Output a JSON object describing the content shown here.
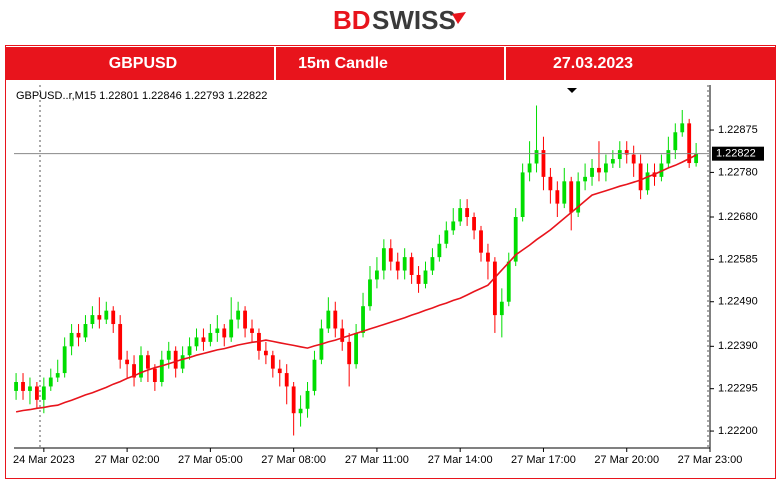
{
  "header": {
    "logo_bd": "BD",
    "logo_swiss": "SWISS",
    "symbol": "GBPUSD",
    "timeframe": "15m Candle",
    "date": "27.03.2023"
  },
  "chart_data": {
    "type": "candlestick",
    "symbol_info": "GBPUSD..r,M15  1.22801  1.22846  1.22793  1.22822",
    "last_price": 1.22822,
    "up_color": "#00dd00",
    "down_color": "#ff0000",
    "open": [
      1.2229,
      1.2231,
      1.2229,
      1.223,
      1.2227,
      1.223,
      1.2232,
      1.2233,
      1.2239,
      1.2242,
      1.2241,
      1.2244,
      1.2246,
      1.2245,
      1.2247,
      1.2244,
      1.2236,
      1.2235,
      1.2232,
      1.2237,
      1.2234,
      1.2231,
      1.2236,
      1.2238,
      1.2234,
      1.2237,
      1.2239,
      1.2241,
      1.224,
      1.2242,
      1.2243,
      1.2241,
      1.2245,
      1.2247,
      1.2243,
      1.2242,
      1.2238,
      1.2237,
      1.2234,
      1.2233,
      1.223,
      1.2224,
      1.2225,
      1.2229,
      1.2236,
      1.2243,
      1.2247,
      1.2243,
      1.224,
      1.2235,
      1.2242,
      1.2248,
      1.2254,
      1.2256,
      1.2261,
      1.2258,
      1.2256,
      1.2259,
      1.2255,
      1.2253,
      1.2256,
      1.2259,
      1.2262,
      1.2265,
      1.2267,
      1.227,
      1.2268,
      1.2265,
      1.226,
      1.2258,
      1.2246,
      1.2249,
      1.2258,
      1.2268,
      1.2278,
      1.228,
      1.2283,
      1.2277,
      1.2274,
      1.2271,
      1.2276,
      1.2269,
      1.2276,
      1.2277,
      1.2279,
      1.2278,
      1.228,
      1.2281,
      1.2283,
      1.2282,
      1.228,
      1.2274,
      1.2278,
      1.2277,
      1.228,
      1.2283,
      1.2287,
      1.2289,
      1.22801
    ],
    "high": [
      1.2233,
      1.2233,
      1.2232,
      1.2231,
      1.2232,
      1.2234,
      1.2236,
      1.2241,
      1.2244,
      1.2244,
      1.2246,
      1.2248,
      1.225,
      1.2249,
      1.2248,
      1.2246,
      1.2238,
      1.2237,
      1.2239,
      1.2238,
      1.2235,
      1.2238,
      1.224,
      1.2239,
      1.2239,
      1.2241,
      1.2243,
      1.2243,
      1.2244,
      1.2246,
      1.2244,
      1.225,
      1.2249,
      1.2248,
      1.2245,
      1.2243,
      1.224,
      1.2238,
      1.2236,
      1.2235,
      1.2231,
      1.2228,
      1.2231,
      1.2238,
      1.2245,
      1.225,
      1.2249,
      1.2245,
      1.2242,
      1.2244,
      1.2251,
      1.2257,
      1.2259,
      1.2263,
      1.2263,
      1.226,
      1.2261,
      1.226,
      1.2257,
      1.2258,
      1.2261,
      1.2264,
      1.2267,
      1.227,
      1.2272,
      1.2272,
      1.2269,
      1.2266,
      1.2262,
      1.2259,
      1.2252,
      1.226,
      1.227,
      1.228,
      1.2285,
      1.2293,
      1.2286,
      1.2279,
      1.2276,
      1.2279,
      1.2277,
      1.2278,
      1.228,
      1.2281,
      1.2285,
      1.2282,
      1.2283,
      1.2285,
      1.2285,
      1.2284,
      1.2282,
      1.228,
      1.228,
      1.2282,
      1.2286,
      1.2289,
      1.2292,
      1.229,
      1.22846
    ],
    "low": [
      1.2227,
      1.2227,
      1.2226,
      1.2225,
      1.2224,
      1.2229,
      1.2231,
      1.2232,
      1.2237,
      1.2239,
      1.224,
      1.2243,
      1.2243,
      1.2244,
      1.2242,
      1.2234,
      1.2232,
      1.223,
      1.2231,
      1.2231,
      1.2229,
      1.223,
      1.2234,
      1.2232,
      1.2233,
      1.2236,
      1.2238,
      1.2238,
      1.2239,
      1.224,
      1.2239,
      1.224,
      1.2243,
      1.2241,
      1.224,
      1.2236,
      1.2235,
      1.2232,
      1.223,
      1.2226,
      1.2219,
      1.2221,
      1.2223,
      1.2228,
      1.2235,
      1.2242,
      1.2241,
      1.2238,
      1.223,
      1.2234,
      1.2241,
      1.2247,
      1.2252,
      1.2254,
      1.2256,
      1.2254,
      1.2254,
      1.2253,
      1.2251,
      1.2252,
      1.2255,
      1.2258,
      1.2261,
      1.2264,
      1.2266,
      1.2266,
      1.2263,
      1.2258,
      1.2254,
      1.2242,
      1.2241,
      1.2248,
      1.2257,
      1.2267,
      1.2276,
      1.2278,
      1.2274,
      1.2271,
      1.2268,
      1.227,
      1.2265,
      1.2268,
      1.2274,
      1.2275,
      1.2276,
      1.2276,
      1.2279,
      1.2279,
      1.228,
      1.2277,
      1.2272,
      1.2273,
      1.2275,
      1.2276,
      1.2279,
      1.2281,
      1.2286,
      1.2279,
      1.22793
    ],
    "close": [
      1.2231,
      1.2229,
      1.223,
      1.2227,
      1.223,
      1.2232,
      1.2233,
      1.2239,
      1.2242,
      1.2241,
      1.2244,
      1.2246,
      1.2245,
      1.2247,
      1.2244,
      1.2236,
      1.2235,
      1.2232,
      1.2237,
      1.2234,
      1.2231,
      1.2236,
      1.2238,
      1.2234,
      1.2237,
      1.2239,
      1.2241,
      1.224,
      1.2242,
      1.2243,
      1.2241,
      1.2245,
      1.2247,
      1.2243,
      1.2242,
      1.2238,
      1.2237,
      1.2234,
      1.2233,
      1.223,
      1.2224,
      1.2225,
      1.2229,
      1.2236,
      1.2243,
      1.2247,
      1.2243,
      1.224,
      1.2235,
      1.2242,
      1.2248,
      1.2254,
      1.2256,
      1.2261,
      1.2258,
      1.2256,
      1.2259,
      1.2255,
      1.2253,
      1.2256,
      1.2259,
      1.2262,
      1.2265,
      1.2267,
      1.227,
      1.2268,
      1.2265,
      1.226,
      1.2258,
      1.2246,
      1.2249,
      1.2258,
      1.2268,
      1.2278,
      1.228,
      1.2283,
      1.2277,
      1.2274,
      1.2271,
      1.2276,
      1.2269,
      1.2276,
      1.2277,
      1.2279,
      1.2278,
      1.228,
      1.2281,
      1.2283,
      1.2282,
      1.228,
      1.2274,
      1.2278,
      1.2277,
      1.228,
      1.2283,
      1.2287,
      1.2289,
      1.22801,
      1.22822
    ],
    "ma": {
      "color": "#e8141c",
      "values": [
        1.22243,
        1.22246,
        1.22248,
        1.22251,
        1.22253,
        1.22256,
        1.22258,
        1.22264,
        1.22269,
        1.22275,
        1.22281,
        1.22286,
        1.22292,
        1.22298,
        1.22305,
        1.22311,
        1.22318,
        1.22324,
        1.22331,
        1.22337,
        1.22342,
        1.22346,
        1.22351,
        1.22356,
        1.22361,
        1.22365,
        1.2237,
        1.22374,
        1.22378,
        1.22382,
        1.22385,
        1.22389,
        1.22393,
        1.22396,
        1.22399,
        1.22401,
        1.22404,
        1.22401,
        1.22398,
        1.22395,
        1.22392,
        1.22389,
        1.22386,
        1.22391,
        1.22395,
        1.224,
        1.22404,
        1.22409,
        1.22414,
        1.22419,
        1.22424,
        1.22429,
        1.22434,
        1.22439,
        1.22444,
        1.22449,
        1.22454,
        1.2246,
        1.22465,
        1.22471,
        1.22476,
        1.22482,
        1.22487,
        1.22493,
        1.22498,
        1.22505,
        1.22513,
        1.2252,
        1.22527,
        1.22544,
        1.22561,
        1.22578,
        1.22595,
        1.22606,
        1.22617,
        1.22629,
        1.2264,
        1.22651,
        1.22664,
        1.22677,
        1.2269,
        1.22703,
        1.22716,
        1.22729,
        1.22734,
        1.22739,
        1.22744,
        1.22749,
        1.22753,
        1.22758,
        1.22763,
        1.2277,
        1.22776,
        1.22783,
        1.2279,
        1.22796,
        1.22803,
        1.22811,
        1.22819
      ]
    },
    "xlim": [
      -0.3,
      100
    ],
    "xticks": [
      {
        "value": 4,
        "label": "24 Mar 2023"
      },
      {
        "value": 16,
        "label": "27 Mar 02:00"
      },
      {
        "value": 28,
        "label": "27 Mar 05:00"
      },
      {
        "value": 40,
        "label": "27 Mar 08:00"
      },
      {
        "value": 52,
        "label": "27 Mar 11:00"
      },
      {
        "value": 64,
        "label": "27 Mar 14:00"
      },
      {
        "value": 76,
        "label": "27 Mar 17:00"
      },
      {
        "value": 88,
        "label": "27 Mar 20:00"
      },
      {
        "value": 100,
        "label": "27 Mar 23:00"
      }
    ],
    "ylim": [
      1.22162,
      1.22976
    ],
    "yticks": [
      1.22875,
      {
        "value": 1.2278,
        "label": "1.22780"
      },
      {
        "value": 1.2268,
        "label": "1.22680"
      },
      1.22585,
      {
        "value": 1.2249,
        "label": "1.22490"
      },
      {
        "value": 1.2239,
        "label": "1.22390"
      },
      1.22295,
      {
        "value": 1.222,
        "label": "1.22200"
      }
    ]
  }
}
